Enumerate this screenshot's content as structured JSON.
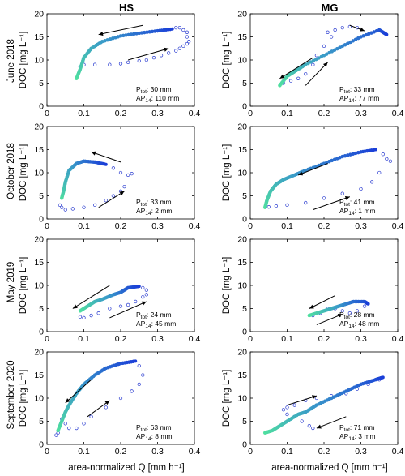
{
  "figure": {
    "columns": [
      "HS",
      "MG"
    ],
    "rows": [
      "June 2018",
      "October 2018",
      "May 2019",
      "September 2020"
    ],
    "xlabel": "area-normalized Q [mm h⁻¹]",
    "ylabel": "DOC [mg L⁻¹]",
    "colors": {
      "early": "#50e0a0",
      "mid": "#3a9cc8",
      "late": "#1a3ed8",
      "point": "#2a3cd0",
      "axis": "#000000",
      "arrow": "#000000"
    }
  },
  "chart_data": [
    {
      "type": "scatter",
      "title": "June 2018 – HS",
      "xlim": [
        0,
        0.4
      ],
      "ylim": [
        0,
        20
      ],
      "xticks": [
        0,
        0.1,
        0.2,
        0.3,
        0.4
      ],
      "yticks": [
        0,
        5,
        10,
        15,
        20
      ],
      "grid": false,
      "annotation": [
        "P_tot: 30 mm",
        "AP_14: 110 mm"
      ],
      "dense_path": [
        [
          0.08,
          6
        ],
        [
          0.09,
          8
        ],
        [
          0.1,
          10.5
        ],
        [
          0.12,
          12.5
        ],
        [
          0.15,
          14
        ],
        [
          0.2,
          15.2
        ],
        [
          0.25,
          15.8
        ],
        [
          0.3,
          16.3
        ],
        [
          0.34,
          16.7
        ]
      ],
      "loop_points": [
        [
          0.35,
          17
        ],
        [
          0.36,
          17
        ],
        [
          0.37,
          16.5
        ],
        [
          0.38,
          16
        ],
        [
          0.38,
          15
        ],
        [
          0.385,
          14
        ],
        [
          0.38,
          13.5
        ],
        [
          0.37,
          13
        ],
        [
          0.36,
          12.5
        ],
        [
          0.35,
          12
        ],
        [
          0.33,
          11.5
        ],
        [
          0.31,
          11
        ],
        [
          0.29,
          10.5
        ],
        [
          0.27,
          10
        ],
        [
          0.25,
          9.8
        ],
        [
          0.22,
          9.5
        ],
        [
          0.2,
          9.2
        ],
        [
          0.17,
          9
        ],
        [
          0.13,
          9
        ],
        [
          0.1,
          9
        ],
        [
          0.09,
          8.5
        ]
      ],
      "arrows": [
        {
          "from": [
            0.26,
            17.5
          ],
          "to": [
            0.14,
            15.5
          ]
        },
        {
          "from": [
            0.22,
            10
          ],
          "to": [
            0.33,
            12.5
          ]
        }
      ]
    },
    {
      "type": "scatter",
      "title": "June 2018 – MG",
      "xlim": [
        0,
        0.4
      ],
      "ylim": [
        0,
        20
      ],
      "xticks": [
        0,
        0.1,
        0.2,
        0.3,
        0.4
      ],
      "yticks": [
        0,
        5,
        10,
        15,
        20
      ],
      "grid": false,
      "annotation": [
        "P_tot: 33 mm",
        "AP_14: 77 mm"
      ],
      "dense_path": [
        [
          0.08,
          4.5
        ],
        [
          0.1,
          6.5
        ],
        [
          0.12,
          7.5
        ],
        [
          0.15,
          9
        ],
        [
          0.2,
          11
        ],
        [
          0.25,
          13
        ],
        [
          0.3,
          15
        ],
        [
          0.35,
          16.5
        ],
        [
          0.37,
          15.5
        ]
      ],
      "loop_points": [
        [
          0.21,
          16
        ],
        [
          0.23,
          16.5
        ],
        [
          0.25,
          17
        ],
        [
          0.27,
          17.2
        ],
        [
          0.29,
          17
        ],
        [
          0.22,
          15
        ],
        [
          0.2,
          13
        ],
        [
          0.18,
          11
        ],
        [
          0.17,
          9
        ],
        [
          0.15,
          7
        ],
        [
          0.13,
          6
        ],
        [
          0.11,
          5.5
        ],
        [
          0.09,
          5
        ]
      ],
      "arrows": [
        {
          "from": [
            0.27,
            17.5
          ],
          "to": [
            0.31,
            16.3
          ]
        },
        {
          "from": [
            0.17,
            10.5
          ],
          "to": [
            0.08,
            6
          ]
        },
        {
          "from": [
            0.15,
            4.5
          ],
          "to": [
            0.21,
            9.5
          ]
        }
      ]
    },
    {
      "type": "scatter",
      "title": "October 2018 – HS",
      "xlim": [
        0,
        0.4
      ],
      "ylim": [
        0,
        20
      ],
      "xticks": [
        0,
        0.1,
        0.2,
        0.3,
        0.4
      ],
      "yticks": [
        0,
        5,
        10,
        15,
        20
      ],
      "grid": false,
      "annotation": [
        "P_tot: 33 mm",
        "AP_14: 2 mm"
      ],
      "dense_path": [
        [
          0.04,
          4.5
        ],
        [
          0.045,
          6
        ],
        [
          0.05,
          8
        ],
        [
          0.06,
          10.5
        ],
        [
          0.08,
          12
        ],
        [
          0.1,
          12.5
        ],
        [
          0.13,
          12.3
        ],
        [
          0.16,
          11.8
        ]
      ],
      "loop_points": [
        [
          0.18,
          11
        ],
        [
          0.2,
          10
        ],
        [
          0.22,
          9.5
        ],
        [
          0.23,
          9.8
        ],
        [
          0.21,
          7
        ],
        [
          0.2,
          6
        ],
        [
          0.18,
          5
        ],
        [
          0.16,
          4
        ],
        [
          0.13,
          3
        ],
        [
          0.1,
          2.5
        ],
        [
          0.07,
          2.2
        ],
        [
          0.05,
          2
        ],
        [
          0.04,
          2.5
        ],
        [
          0.035,
          3
        ]
      ],
      "arrows": [
        {
          "from": [
            0.2,
            12.3
          ],
          "to": [
            0.12,
            14.5
          ]
        },
        {
          "from": [
            0.14,
            2.5
          ],
          "to": [
            0.21,
            6
          ]
        }
      ]
    },
    {
      "type": "scatter",
      "title": "October 2018 – MG",
      "xlim": [
        0,
        0.4
      ],
      "ylim": [
        0,
        20
      ],
      "xticks": [
        0,
        0.1,
        0.2,
        0.3,
        0.4
      ],
      "yticks": [
        0,
        5,
        10,
        15,
        20
      ],
      "grid": false,
      "annotation": [
        "P_tot: 41 mm",
        "AP_14: 1 mm"
      ],
      "dense_path": [
        [
          0.04,
          2.5
        ],
        [
          0.045,
          4
        ],
        [
          0.055,
          6
        ],
        [
          0.07,
          7.5
        ],
        [
          0.09,
          8.5
        ],
        [
          0.12,
          9.5
        ],
        [
          0.15,
          10.5
        ],
        [
          0.2,
          12
        ],
        [
          0.25,
          13.5
        ],
        [
          0.3,
          14.5
        ],
        [
          0.34,
          15
        ]
      ],
      "loop_points": [
        [
          0.36,
          14
        ],
        [
          0.37,
          13
        ],
        [
          0.38,
          12.5
        ],
        [
          0.35,
          10
        ],
        [
          0.33,
          8
        ],
        [
          0.3,
          6.5
        ],
        [
          0.25,
          5.5
        ],
        [
          0.2,
          4.5
        ],
        [
          0.15,
          3.5
        ],
        [
          0.1,
          3
        ],
        [
          0.07,
          2.8
        ],
        [
          0.05,
          2.6
        ]
      ],
      "arrows": [
        {
          "from": [
            0.21,
            12
          ],
          "to": [
            0.13,
            9.5
          ]
        },
        {
          "from": [
            0.17,
            2
          ],
          "to": [
            0.27,
            4.8
          ]
        }
      ]
    },
    {
      "type": "scatter",
      "title": "May 2019 – HS",
      "xlim": [
        0,
        0.4
      ],
      "ylim": [
        0,
        20
      ],
      "xticks": [
        0,
        0.1,
        0.2,
        0.3,
        0.4
      ],
      "yticks": [
        0,
        5,
        10,
        15,
        20
      ],
      "grid": false,
      "annotation": [
        "P_tot: 24 mm",
        "AP_14: 45 mm"
      ],
      "dense_path": [
        [
          0.09,
          4.5
        ],
        [
          0.11,
          5.5
        ],
        [
          0.13,
          6.5
        ],
        [
          0.15,
          7
        ],
        [
          0.18,
          8
        ],
        [
          0.2,
          8.5
        ],
        [
          0.22,
          9.5
        ],
        [
          0.25,
          9.8
        ]
      ],
      "loop_points": [
        [
          0.26,
          9.5
        ],
        [
          0.27,
          9
        ],
        [
          0.27,
          8
        ],
        [
          0.26,
          7.5
        ],
        [
          0.24,
          6.5
        ],
        [
          0.22,
          5.8
        ],
        [
          0.2,
          5.5
        ],
        [
          0.17,
          5
        ],
        [
          0.14,
          4
        ],
        [
          0.12,
          3.5
        ],
        [
          0.1,
          3
        ],
        [
          0.09,
          3.2
        ]
      ],
      "arrows": [
        {
          "from": [
            0.17,
            10
          ],
          "to": [
            0.07,
            5
          ]
        },
        {
          "from": [
            0.17,
            3
          ],
          "to": [
            0.27,
            6.5
          ]
        }
      ]
    },
    {
      "type": "scatter",
      "title": "May 2019 – MG",
      "xlim": [
        0,
        0.4
      ],
      "ylim": [
        0,
        20
      ],
      "xticks": [
        0,
        0.1,
        0.2,
        0.3,
        0.4
      ],
      "yticks": [
        0,
        5,
        10,
        15,
        20
      ],
      "grid": false,
      "annotation": [
        "P_tot: 28 mm",
        "AP_14: 48 mm"
      ],
      "dense_path": [
        [
          0.16,
          3.5
        ],
        [
          0.18,
          4
        ],
        [
          0.2,
          4.5
        ],
        [
          0.22,
          5
        ],
        [
          0.24,
          5.5
        ],
        [
          0.26,
          6
        ],
        [
          0.28,
          6.5
        ],
        [
          0.31,
          6.5
        ],
        [
          0.32,
          6
        ]
      ],
      "loop_points": [
        [
          0.31,
          5.5
        ],
        [
          0.29,
          4.5
        ],
        [
          0.27,
          4
        ],
        [
          0.25,
          4.5
        ],
        [
          0.23,
          5
        ],
        [
          0.21,
          5
        ],
        [
          0.19,
          4
        ],
        [
          0.17,
          3.5
        ]
      ],
      "arrows": [
        {
          "from": [
            0.23,
            7.8
          ],
          "to": [
            0.16,
            5
          ]
        },
        {
          "from": [
            0.18,
            1.5
          ],
          "to": [
            0.25,
            3.8
          ]
        }
      ]
    },
    {
      "type": "scatter",
      "title": "September 2020 – HS",
      "xlim": [
        0,
        0.4
      ],
      "ylim": [
        0,
        20
      ],
      "xticks": [
        0,
        0.1,
        0.2,
        0.3,
        0.4
      ],
      "yticks": [
        0,
        5,
        10,
        15,
        20
      ],
      "grid": false,
      "annotation": [
        "P_tot: 63 mm",
        "AP_14: 8 mm"
      ],
      "dense_path": [
        [
          0.03,
          3
        ],
        [
          0.04,
          5
        ],
        [
          0.05,
          7
        ],
        [
          0.06,
          8.5
        ],
        [
          0.08,
          11
        ],
        [
          0.1,
          13
        ],
        [
          0.13,
          15
        ],
        [
          0.16,
          16.5
        ],
        [
          0.2,
          17.5
        ],
        [
          0.24,
          18
        ]
      ],
      "loop_points": [
        [
          0.25,
          17
        ],
        [
          0.26,
          15
        ],
        [
          0.25,
          13
        ],
        [
          0.23,
          11.5
        ],
        [
          0.2,
          10
        ],
        [
          0.16,
          8
        ],
        [
          0.12,
          6
        ],
        [
          0.1,
          4.5
        ],
        [
          0.08,
          3.5
        ],
        [
          0.06,
          3.5
        ],
        [
          0.05,
          4.5
        ],
        [
          0.04,
          5.5
        ],
        [
          0.03,
          2.5
        ],
        [
          0.025,
          2
        ]
      ],
      "arrows": [
        {
          "from": [
            0.12,
            14
          ],
          "to": [
            0.05,
            9
          ]
        },
        {
          "from": [
            0.11,
            6
          ],
          "to": [
            0.17,
            9.5
          ]
        }
      ]
    },
    {
      "type": "scatter",
      "title": "September 2020 – MG",
      "xlim": [
        0,
        0.4
      ],
      "ylim": [
        0,
        20
      ],
      "xticks": [
        0,
        0.1,
        0.2,
        0.3,
        0.4
      ],
      "yticks": [
        0,
        5,
        10,
        15,
        20
      ],
      "grid": false,
      "annotation": [
        "P_tot: 71 mm",
        "AP_14: 3 mm"
      ],
      "dense_path": [
        [
          0.04,
          2.5
        ],
        [
          0.06,
          3
        ],
        [
          0.08,
          4
        ],
        [
          0.1,
          5
        ],
        [
          0.13,
          6.5
        ],
        [
          0.15,
          7
        ],
        [
          0.18,
          8.5
        ],
        [
          0.22,
          10
        ],
        [
          0.26,
          11.5
        ],
        [
          0.3,
          13
        ],
        [
          0.34,
          14
        ],
        [
          0.36,
          14.5
        ]
      ],
      "loop_points": [
        [
          0.35,
          14
        ],
        [
          0.32,
          13
        ],
        [
          0.29,
          12
        ],
        [
          0.26,
          11
        ],
        [
          0.22,
          10.5
        ],
        [
          0.18,
          10
        ],
        [
          0.15,
          9.5
        ],
        [
          0.12,
          8.5
        ],
        [
          0.1,
          8
        ],
        [
          0.09,
          7.5
        ],
        [
          0.1,
          6.5
        ],
        [
          0.12,
          6
        ],
        [
          0.14,
          5
        ],
        [
          0.16,
          4
        ],
        [
          0.17,
          3.5
        ]
      ],
      "arrows": [
        {
          "from": [
            0.1,
            8.5
          ],
          "to": [
            0.18,
            10.5
          ]
        },
        {
          "from": [
            0.26,
            6
          ],
          "to": [
            0.18,
            3.5
          ]
        }
      ]
    }
  ]
}
